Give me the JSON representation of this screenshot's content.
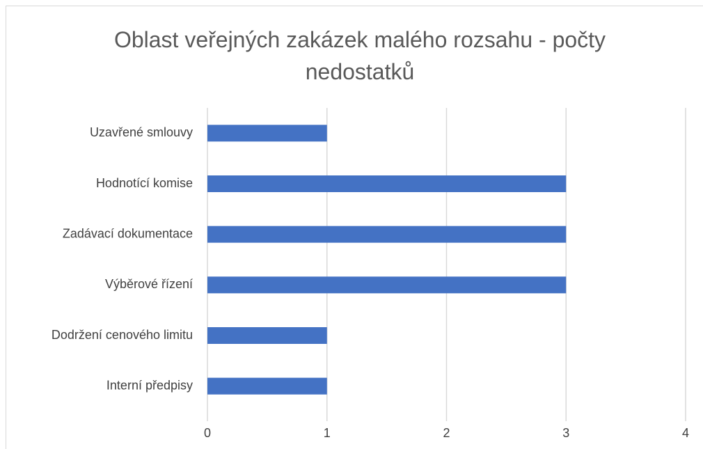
{
  "chart_data": {
    "type": "hbar",
    "title": "Oblast veřejných zakázek malého rozsahu - počty nedostatků",
    "categories": [
      "Uzavřené smlouvy",
      "Hodnotící komise",
      "Zadávací dokumentace",
      "Výběrové řízení",
      "Dodržení cenového limitu",
      "Interní předpisy"
    ],
    "values": [
      1,
      3,
      3,
      3,
      1,
      1
    ],
    "color": "#4472c4",
    "xlim": [
      0,
      4
    ],
    "xticks": [
      0,
      1,
      2,
      3,
      4
    ],
    "grid": true
  }
}
